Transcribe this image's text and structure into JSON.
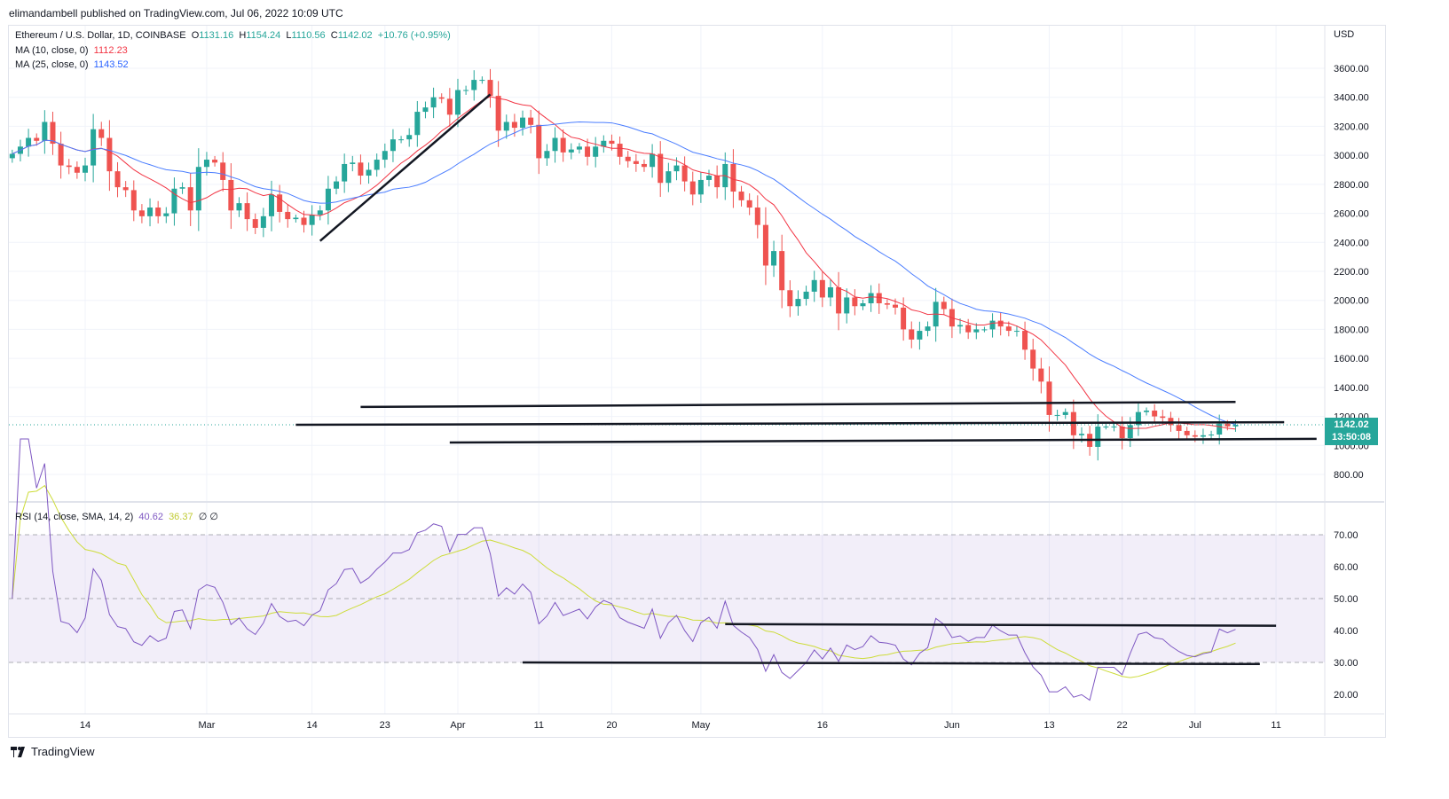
{
  "published": "elimandambell published on TradingView.com, Jul 06, 2022 10:09 UTC",
  "legend": {
    "symbol": "Ethereum / U.S. Dollar, 1D, COINBASE",
    "o_label": "O",
    "o": "1131.16",
    "h_label": "H",
    "h": "1154.24",
    "l_label": "L",
    "l": "1110.56",
    "c_label": "C",
    "c": "1142.02",
    "change": "+10.76 (+0.95%)",
    "ma10_label": "MA (10, close, 0)",
    "ma10": "1112.23",
    "ma25_label": "MA (25, close, 0)",
    "ma25": "1143.52",
    "rsi_label": "RSI (14, close, SMA, 14, 2)",
    "rsi": "40.62",
    "rsi_sma": "36.37",
    "rsi_extra": "∅ ∅"
  },
  "currency": "USD",
  "last_price": "1142.02",
  "countdown": "13:50:08",
  "footer_brand": "TradingView",
  "colors": {
    "up": "#26a69a",
    "down": "#ef5350",
    "ma10": "#f23645",
    "ma25": "#2962ff",
    "rsi": "#7e57c2",
    "rsi_sma": "#cddc39",
    "drawing": "#131722"
  },
  "chart_data": {
    "type": "candlestick",
    "start_date": "2022-02-05",
    "closes": [
      3010,
      3060,
      3120,
      3100,
      3230,
      3080,
      2930,
      2920,
      2880,
      2930,
      3180,
      3120,
      2890,
      2780,
      2760,
      2620,
      2580,
      2640,
      2580,
      2600,
      2770,
      2780,
      2620,
      2920,
      2970,
      2950,
      2830,
      2620,
      2670,
      2560,
      2500,
      2580,
      2730,
      2610,
      2560,
      2570,
      2520,
      2590,
      2620,
      2770,
      2820,
      2940,
      2950,
      2860,
      2900,
      2970,
      3030,
      3110,
      3110,
      3140,
      3300,
      3330,
      3400,
      3390,
      3280,
      3450,
      3450,
      3520,
      3520,
      3410,
      3170,
      3230,
      3190,
      3260,
      3210,
      2980,
      3030,
      3120,
      3020,
      3040,
      3060,
      2990,
      3060,
      3100,
      3080,
      2990,
      2960,
      2940,
      2920,
      3010,
      2810,
      2890,
      2930,
      2820,
      2730,
      2830,
      2860,
      2780,
      2940,
      2750,
      2690,
      2640,
      2520,
      2240,
      2340,
      2070,
      1960,
      2010,
      2060,
      2140,
      2020,
      2090,
      1910,
      2020,
      1960,
      1980,
      2050,
      1980,
      1970,
      1950,
      1800,
      1730,
      1790,
      1820,
      1990,
      1940,
      1820,
      1830,
      1780,
      1800,
      1800,
      1860,
      1820,
      1790,
      1790,
      1660,
      1530,
      1440,
      1210,
      1210,
      1230,
      1070,
      1080,
      990,
      1130,
      1130,
      1130,
      1050,
      1140,
      1230,
      1240,
      1200,
      1190,
      1140,
      1100,
      1070,
      1060,
      1070,
      1075,
      1150,
      1131,
      1142.02
    ],
    "price_axis": {
      "ticks": [
        3600,
        3400,
        3200,
        3000,
        2800,
        2600,
        2400,
        2200,
        2000,
        1800,
        1600,
        1400,
        1200,
        1000,
        800
      ],
      "range": [
        700,
        3800
      ]
    },
    "rsi_axis": {
      "ticks": [
        70,
        60,
        50,
        40,
        30,
        20
      ],
      "band": [
        30,
        70
      ],
      "midline": 50
    },
    "x_ticks": [
      {
        "label": "14",
        "date": "2022-02-14"
      },
      {
        "label": "Mar",
        "date": "2022-03-01"
      },
      {
        "label": "14",
        "date": "2022-03-14"
      },
      {
        "label": "23",
        "date": "2022-03-23"
      },
      {
        "label": "Apr",
        "date": "2022-04-01"
      },
      {
        "label": "11",
        "date": "2022-04-11"
      },
      {
        "label": "20",
        "date": "2022-04-20"
      },
      {
        "label": "May",
        "date": "2022-05-01"
      },
      {
        "label": "16",
        "date": "2022-05-16"
      },
      {
        "label": "Jun",
        "date": "2022-06-01"
      },
      {
        "label": "13",
        "date": "2022-06-13"
      },
      {
        "label": "22",
        "date": "2022-06-22"
      },
      {
        "label": "Jul",
        "date": "2022-07-01"
      },
      {
        "label": "11",
        "date": "2022-07-11"
      }
    ],
    "price_drawings": [
      {
        "name": "trendline",
        "from": [
          "2022-03-15",
          2410
        ],
        "to": [
          "2022-04-05",
          3420
        ]
      },
      {
        "name": "resistance-line",
        "from": [
          "2022-03-20",
          1265
        ],
        "to": [
          "2022-07-06",
          1300
        ]
      },
      {
        "name": "mid-line",
        "from": [
          "2022-03-12",
          1142
        ],
        "to": [
          "2022-07-12",
          1160
        ]
      },
      {
        "name": "support-line",
        "from": [
          "2022-03-31",
          1020
        ],
        "to": [
          "2022-07-16",
          1045
        ]
      }
    ],
    "rsi_drawings": [
      {
        "name": "rsi-resistance-line",
        "from": [
          "2022-05-04",
          42
        ],
        "to": [
          "2022-07-11",
          41.5
        ]
      },
      {
        "name": "rsi-support-line",
        "from": [
          "2022-04-09",
          30
        ],
        "to": [
          "2022-07-09",
          29.5
        ]
      }
    ]
  }
}
